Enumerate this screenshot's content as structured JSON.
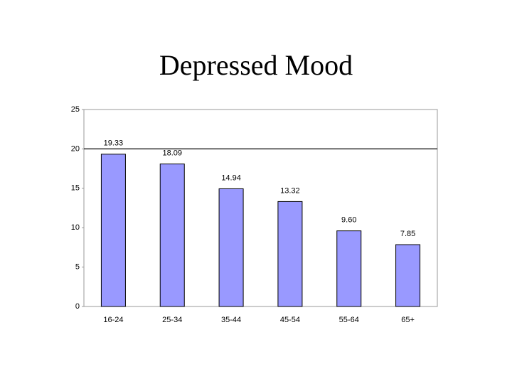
{
  "chart_data": {
    "type": "bar",
    "title": "Depressed Mood",
    "categories": [
      "16-24",
      "25-34",
      "35-44",
      "45-54",
      "55-64",
      "65+"
    ],
    "values": [
      19.33,
      18.09,
      14.94,
      13.32,
      9.6,
      7.85
    ],
    "value_labels": [
      "19.33",
      "18.09",
      "14.94",
      "13.32",
      "9.60",
      "7.85"
    ],
    "color": "#9999ff",
    "ylim": [
      0,
      25
    ],
    "yticks": [
      0,
      5,
      10,
      15,
      20,
      25
    ],
    "reference_line": 20
  }
}
